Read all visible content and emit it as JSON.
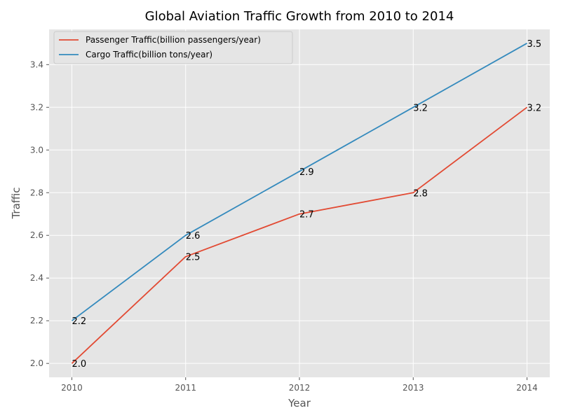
{
  "chart_data": {
    "type": "line",
    "title": "Global Aviation Traffic Growth from 2010 to 2014",
    "xlabel": "Year",
    "ylabel": "Traffic",
    "x": [
      "2010",
      "2011",
      "2012",
      "2013",
      "2014"
    ],
    "ylim": [
      1.935,
      3.565
    ],
    "yticks": [
      "2.0",
      "2.2",
      "2.4",
      "2.6",
      "2.8",
      "3.0",
      "3.2",
      "3.4"
    ],
    "grid": true,
    "legend_position": "top-left",
    "series": [
      {
        "name": "Passenger Traffic(billion passengers/year)",
        "color": "#E24A33",
        "values": [
          2.0,
          2.5,
          2.7,
          2.8,
          3.2
        ],
        "labels": [
          "2.0",
          "2.5",
          "2.7",
          "2.8",
          "3.2"
        ]
      },
      {
        "name": "Cargo Traffic(billion tons/year)",
        "color": "#348ABD",
        "values": [
          2.2,
          2.6,
          2.9,
          3.2,
          3.5
        ],
        "labels": [
          "2.2",
          "2.6",
          "2.9",
          "3.2",
          "3.5"
        ]
      }
    ],
    "colors": {
      "plot_background": "#E5E5E5",
      "grid": "#FFFFFF"
    }
  }
}
